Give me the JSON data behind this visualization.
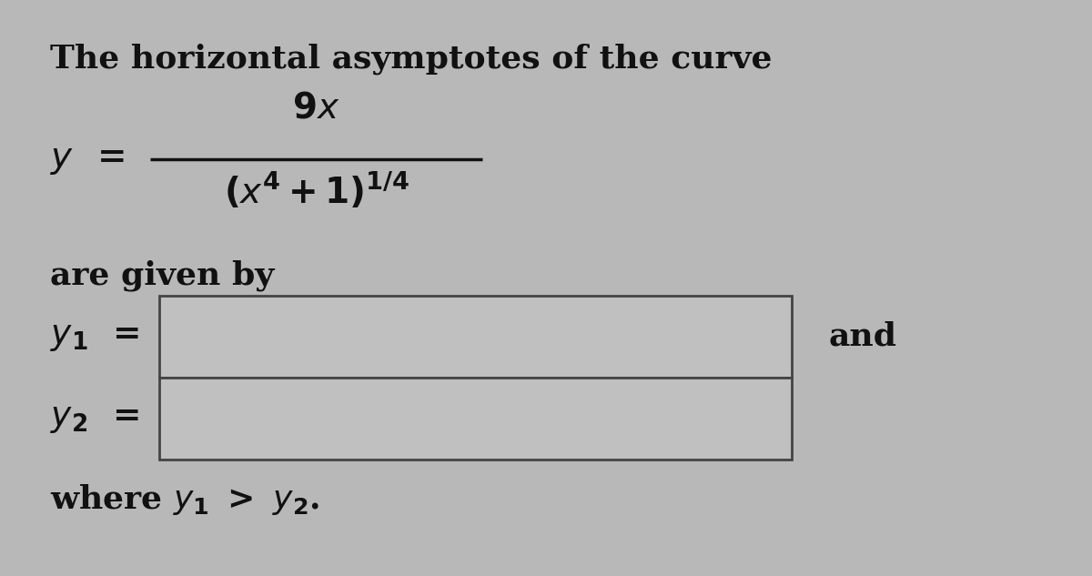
{
  "background_color": "#b8b8b8",
  "text_color": "#111111",
  "title_line": "The horizontal asymptotes of the curve",
  "are_given_by": "are given by",
  "and_text": "and",
  "where_text": "where ",
  "box_facecolor": "#c0c0c0",
  "box_edgecolor": "#444444",
  "fig_width": 12.0,
  "fig_height": 6.33,
  "font_size_main": 26,
  "font_size_formula": 28,
  "font_size_label": 27
}
